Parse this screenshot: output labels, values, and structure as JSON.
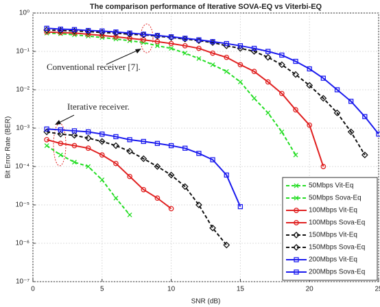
{
  "chart_data": {
    "type": "line",
    "title": "The comparison performance of Iterative SOVA-EQ vs Viterbi-EQ",
    "xlabel": "SNR (dB)",
    "ylabel": "Bit Error Rate (BER)",
    "xlim": [
      0,
      25
    ],
    "xticks": [
      0,
      5,
      10,
      15,
      20,
      25
    ],
    "ylim": [
      1e-07,
      1
    ],
    "yscale": "log",
    "yticks": [
      {
        "value": 1e-07,
        "label": "10⁻⁷"
      },
      {
        "value": 1e-06,
        "label": "10⁻⁶"
      },
      {
        "value": 1e-05,
        "label": "10⁻⁵"
      },
      {
        "value": 0.0001,
        "label": "10⁻⁴"
      },
      {
        "value": 0.001,
        "label": "10⁻³"
      },
      {
        "value": 0.01,
        "label": "10⁻²"
      },
      {
        "value": 0.1,
        "label": "10⁻¹"
      },
      {
        "value": 1,
        "label": "10⁰"
      }
    ],
    "grid": true,
    "legend": "lower right",
    "annotations": [
      "Conventional receiver [7].",
      "Iterative receiver."
    ],
    "series": [
      {
        "name": "50Mbps Vit-Eq",
        "color": "#22dd22",
        "linestyle": "dashed",
        "marker": "x",
        "x": [
          1,
          2,
          3,
          4,
          5,
          6,
          7,
          8,
          9,
          10,
          11,
          12,
          13,
          14,
          15,
          16,
          17,
          18,
          19
        ],
        "values": [
          0.3,
          0.29,
          0.27,
          0.25,
          0.23,
          0.21,
          0.19,
          0.17,
          0.14,
          0.12,
          0.09,
          0.065,
          0.045,
          0.03,
          0.016,
          0.006,
          0.0025,
          0.0008,
          0.0002
        ]
      },
      {
        "name": "50Mbps Sova-Eq",
        "color": "#22dd22",
        "linestyle": "dashed",
        "marker": "x",
        "x": [
          1,
          2,
          3,
          4,
          5,
          6,
          7
        ],
        "values": [
          0.00035,
          0.0002,
          0.00013,
          0.0001,
          4.5e-05,
          1.5e-05,
          5.5e-06
        ]
      },
      {
        "name": "100Mbps Vit-Eq",
        "color": "#e02020",
        "linestyle": "solid",
        "marker": "circle",
        "x": [
          1,
          2,
          3,
          4,
          5,
          6,
          7,
          8,
          9,
          10,
          11,
          12,
          13,
          14,
          15,
          16,
          17,
          18,
          19,
          20,
          21
        ],
        "values": [
          0.32,
          0.31,
          0.3,
          0.28,
          0.26,
          0.24,
          0.22,
          0.2,
          0.18,
          0.16,
          0.14,
          0.12,
          0.09,
          0.07,
          0.045,
          0.03,
          0.016,
          0.008,
          0.003,
          0.0012,
          0.0001
        ]
      },
      {
        "name": "100Mbps Sova-Eq",
        "color": "#e02020",
        "linestyle": "solid",
        "marker": "circle",
        "x": [
          1,
          2,
          3,
          4,
          5,
          6,
          7,
          8,
          9,
          10
        ],
        "values": [
          0.0005,
          0.0004,
          0.00035,
          0.0003,
          0.0002,
          0.00012,
          5.5e-05,
          2.5e-05,
          1.5e-05,
          8e-06
        ]
      },
      {
        "name": "150Mbps Vit-Eq",
        "color": "#111111",
        "linestyle": "dashed",
        "marker": "diamond",
        "x": [
          1,
          2,
          3,
          4,
          5,
          6,
          7,
          8,
          9,
          10,
          11,
          12,
          13,
          14,
          15,
          16,
          17,
          18,
          19,
          20,
          21,
          22,
          23,
          24
        ],
        "values": [
          0.36,
          0.35,
          0.34,
          0.33,
          0.31,
          0.3,
          0.28,
          0.27,
          0.25,
          0.23,
          0.21,
          0.19,
          0.17,
          0.14,
          0.12,
          0.1,
          0.07,
          0.045,
          0.025,
          0.013,
          0.006,
          0.0025,
          0.0008,
          0.0002
        ]
      },
      {
        "name": "150Mbps Sova-Eq",
        "color": "#111111",
        "linestyle": "dashed",
        "marker": "diamond",
        "x": [
          1,
          2,
          3,
          4,
          5,
          6,
          7,
          8,
          9,
          10,
          11,
          12,
          13,
          14
        ],
        "values": [
          0.0008,
          0.0007,
          0.00065,
          0.00055,
          0.00045,
          0.00035,
          0.00025,
          0.00016,
          0.0001,
          6e-05,
          3e-05,
          1e-05,
          2.5e-06,
          9e-07
        ]
      },
      {
        "name": "200Mbps Vit-Eq",
        "color": "#1a1aee",
        "linestyle": "solid",
        "marker": "square",
        "x": [
          1,
          2,
          3,
          4,
          5,
          6,
          7,
          8,
          9,
          10,
          11,
          12,
          13,
          14,
          15,
          16,
          17,
          18,
          19,
          20,
          21,
          22,
          23,
          24,
          25
        ],
        "values": [
          0.4,
          0.38,
          0.37,
          0.35,
          0.34,
          0.32,
          0.3,
          0.28,
          0.26,
          0.24,
          0.22,
          0.2,
          0.18,
          0.16,
          0.14,
          0.12,
          0.1,
          0.08,
          0.055,
          0.035,
          0.02,
          0.01,
          0.005,
          0.002,
          0.0007
        ]
      },
      {
        "name": "200Mbps Sova-Eq",
        "color": "#1a1aee",
        "linestyle": "solid",
        "marker": "square",
        "x": [
          1,
          2,
          3,
          4,
          5,
          6,
          7,
          8,
          9,
          10,
          11,
          12,
          13,
          14,
          15
        ],
        "values": [
          0.00095,
          0.0009,
          0.00085,
          0.0008,
          0.0007,
          0.0006,
          0.0005,
          0.00045,
          0.0004,
          0.00035,
          0.0003,
          0.00022,
          0.00015,
          6e-05,
          9e-06
        ]
      }
    ]
  }
}
